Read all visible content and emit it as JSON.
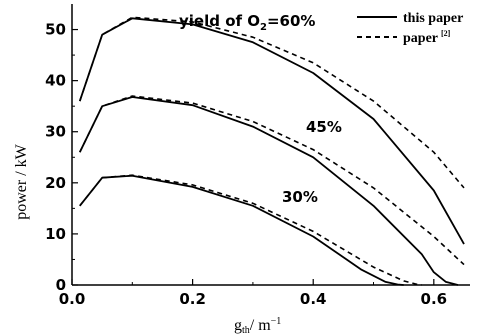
{
  "chart_data": {
    "type": "line",
    "xlabel": "g",
    "xlabel_sub": "th",
    "xlabel_unit": "/ m",
    "xlabel_sup": "−1",
    "ylabel": "power / kW",
    "xlim": [
      0.0,
      0.66
    ],
    "ylim": [
      0,
      55
    ],
    "xticks": [
      0.0,
      0.2,
      0.4,
      0.6
    ],
    "xtick_labels": [
      "0.0",
      "0.2",
      "0.4",
      "0.6"
    ],
    "yticks": [
      0,
      10,
      20,
      30,
      40,
      50
    ],
    "ytick_labels": [
      "0",
      "10",
      "20",
      "30",
      "40",
      "50"
    ],
    "legend": [
      {
        "label": "this paper",
        "style": "solid"
      },
      {
        "label": "paper",
        "sup": "[2]",
        "style": "dashed"
      }
    ],
    "annotations": [
      {
        "text": "yield of O",
        "sub": "2",
        "rest": "=60%"
      },
      {
        "text": "45%"
      },
      {
        "text": "30%"
      }
    ],
    "series": [
      {
        "style": "solid",
        "group": "60%",
        "x": [
          0.013,
          0.05,
          0.1,
          0.2,
          0.3,
          0.4,
          0.5,
          0.6,
          0.65
        ],
        "y": [
          36,
          49,
          52.2,
          51,
          47.5,
          41.5,
          32.5,
          18.5,
          8
        ]
      },
      {
        "style": "dashed",
        "group": "60%",
        "x": [
          0.013,
          0.05,
          0.1,
          0.2,
          0.3,
          0.4,
          0.5,
          0.6,
          0.65
        ],
        "y": [
          36,
          49,
          52.4,
          51.5,
          48.5,
          43.5,
          36,
          26,
          19
        ]
      },
      {
        "style": "solid",
        "group": "45%",
        "x": [
          0.013,
          0.05,
          0.1,
          0.2,
          0.3,
          0.4,
          0.5,
          0.58,
          0.6,
          0.62,
          0.64
        ],
        "y": [
          26,
          35,
          36.8,
          35.2,
          31,
          25,
          15.5,
          6,
          2.5,
          0.6,
          0
        ]
      },
      {
        "style": "dashed",
        "group": "45%",
        "x": [
          0.013,
          0.05,
          0.1,
          0.2,
          0.3,
          0.4,
          0.5,
          0.6,
          0.65
        ],
        "y": [
          26,
          35,
          37,
          35.6,
          32,
          26.5,
          19,
          9.5,
          4
        ]
      },
      {
        "style": "solid",
        "group": "30%",
        "x": [
          0.013,
          0.05,
          0.1,
          0.2,
          0.3,
          0.4,
          0.48,
          0.52,
          0.54,
          0.55
        ],
        "y": [
          15.5,
          21,
          21.4,
          19.2,
          15.5,
          9.5,
          3,
          0.6,
          0.1,
          0
        ]
      },
      {
        "style": "dashed",
        "group": "30%",
        "x": [
          0.013,
          0.05,
          0.1,
          0.2,
          0.3,
          0.4,
          0.5,
          0.55,
          0.57,
          0.58
        ],
        "y": [
          15.5,
          21,
          21.5,
          19.6,
          16,
          10.5,
          3.5,
          0.8,
          0.2,
          0
        ]
      }
    ]
  }
}
